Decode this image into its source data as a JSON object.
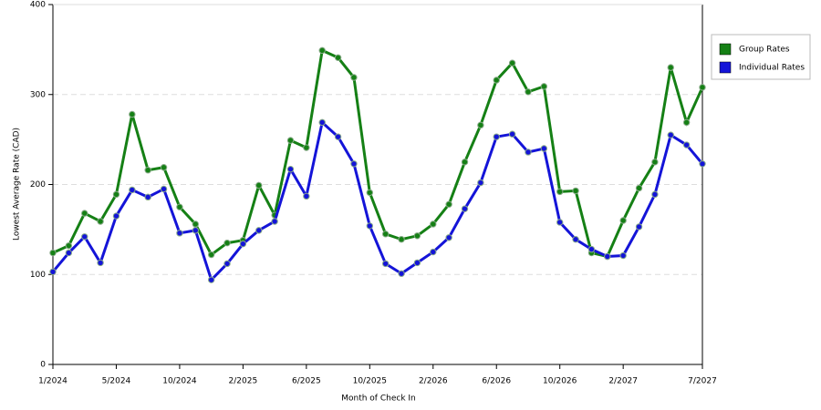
{
  "chart_data": {
    "type": "line",
    "x_label": "Month of Check In",
    "y_label": "Lowest Average Rate (CAD)",
    "categories": [
      "1/2024",
      null,
      null,
      null,
      "5/2024",
      null,
      null,
      null,
      "10/2024",
      null,
      null,
      null,
      "2/2025",
      null,
      null,
      null,
      "6/2025",
      null,
      null,
      null,
      "10/2025",
      null,
      null,
      null,
      "2/2026",
      null,
      null,
      null,
      "6/2026",
      null,
      null,
      null,
      "10/2026",
      null,
      null,
      null,
      "2/2027",
      null,
      null,
      null,
      null,
      "7/2027"
    ],
    "series": [
      {
        "name": "Group Rates",
        "color": "#158015",
        "values": [
          124,
          132,
          168,
          159,
          189,
          278,
          216,
          219,
          175,
          156,
          122,
          135,
          138,
          199,
          166,
          249,
          241,
          349,
          341,
          319,
          191,
          145,
          139,
          143,
          156,
          178,
          225,
          266,
          316,
          335,
          303,
          309,
          192,
          193,
          124,
          120,
          160,
          196,
          225,
          330,
          269,
          308
        ]
      },
      {
        "name": "Individual Rates",
        "color": "#1414d8",
        "values": [
          103,
          124,
          142,
          113,
          165,
          194,
          186,
          195,
          146,
          149,
          94,
          112,
          134,
          149,
          159,
          217,
          187,
          269,
          253,
          223,
          154,
          112,
          101,
          113,
          125,
          141,
          173,
          202,
          253,
          256,
          236,
          240,
          158,
          139,
          128,
          120,
          121,
          153,
          189,
          255,
          244,
          223
        ]
      }
    ],
    "ylim": [
      0,
      400
    ],
    "yticks": [
      0,
      100,
      200,
      300,
      400
    ],
    "grid": true,
    "legend": "right"
  }
}
